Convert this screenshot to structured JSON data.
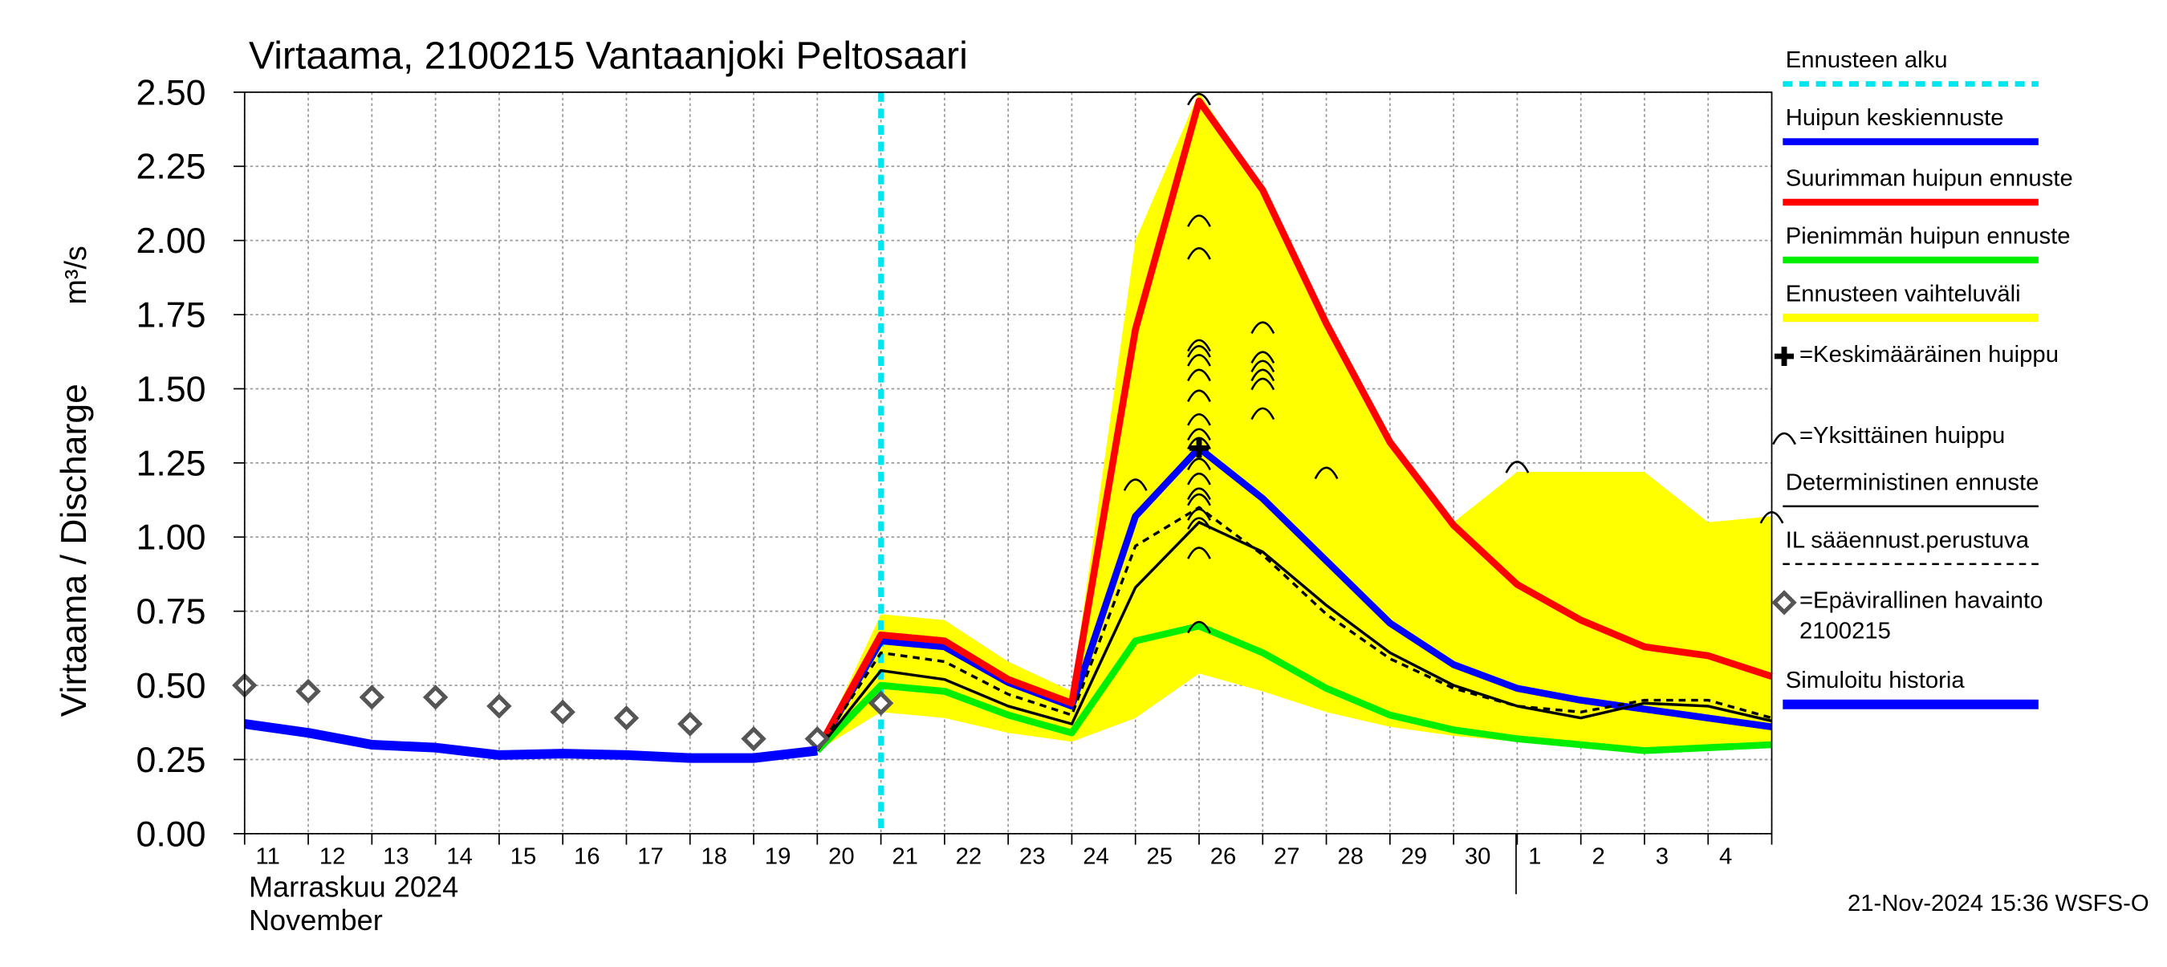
{
  "chart_data": {
    "type": "line",
    "title": "Virtaama, 2100215 Vantaanjoki Peltosaari",
    "y_label": "Virtaama / Discharge",
    "y_unit": "m³/s",
    "x_label_1": "Marraskuu 2024",
    "x_label_2": "November",
    "timestamp": "21-Nov-2024 15:36 WSFS-O",
    "categories": [
      "11",
      "12",
      "13",
      "14",
      "15",
      "16",
      "17",
      "18",
      "19",
      "20",
      "21",
      "22",
      "23",
      "24",
      "25",
      "26",
      "27",
      "28",
      "29",
      "30",
      "1",
      "2",
      "3",
      "4",
      null
    ],
    "ylim": [
      0,
      2.5
    ],
    "yticks": [
      {
        "value": 0,
        "label": "0.00"
      },
      {
        "value": 0.25,
        "label": "0.25"
      },
      {
        "value": 0.5,
        "label": "0.50"
      },
      {
        "value": 0.75,
        "label": "0.75"
      },
      {
        "value": 1,
        "label": "1.00"
      },
      {
        "value": 1.25,
        "label": "1.25"
      },
      {
        "value": 1.5,
        "label": "1.50"
      },
      {
        "value": 1.75,
        "label": "1.75"
      },
      {
        "value": 2,
        "label": "2.00"
      },
      {
        "value": 2.25,
        "label": "2.25"
      },
      {
        "value": 2.5,
        "label": "2.50"
      }
    ],
    "grid": true,
    "series": [
      {
        "name": "Ennusteen alku",
        "kind": "vline",
        "color": "#00e5ee",
        "x": 10
      },
      {
        "name": "Huipun keskiennuste",
        "kind": "line",
        "color": "#0000ff",
        "values": [
          null,
          null,
          null,
          null,
          null,
          null,
          null,
          null,
          null,
          0.28,
          0.65,
          0.63,
          0.51,
          0.43,
          1.07,
          1.3,
          1.13,
          0.92,
          0.71,
          0.57,
          0.49,
          0.45,
          0.42,
          0.39,
          0.36
        ]
      },
      {
        "name": "Suurimman huipun ennuste",
        "kind": "line",
        "color": "#ff0000",
        "values": [
          null,
          null,
          null,
          null,
          null,
          null,
          null,
          null,
          null,
          0.28,
          0.67,
          0.65,
          0.52,
          0.44,
          1.7,
          2.47,
          2.17,
          1.72,
          1.32,
          1.04,
          0.84,
          0.72,
          0.63,
          0.6,
          0.53
        ]
      },
      {
        "name": "Pienimmän huipun ennuste",
        "kind": "line",
        "color": "#00ee00",
        "values": [
          null,
          null,
          null,
          null,
          null,
          null,
          null,
          null,
          null,
          0.28,
          0.5,
          0.48,
          0.4,
          0.34,
          0.65,
          0.7,
          0.61,
          0.49,
          0.4,
          0.35,
          0.32,
          0.3,
          0.28,
          0.29,
          0.3
        ]
      },
      {
        "name": "Ennusteen vaihteluväli",
        "kind": "band",
        "color": "#ffff00",
        "high": [
          null,
          null,
          null,
          null,
          null,
          null,
          null,
          null,
          null,
          0.28,
          0.74,
          0.72,
          0.58,
          0.48,
          2.0,
          2.5,
          2.17,
          1.72,
          1.32,
          1.05,
          1.22,
          1.22,
          1.22,
          1.05,
          1.07
        ],
        "low": [
          null,
          null,
          null,
          null,
          null,
          null,
          null,
          null,
          null,
          0.28,
          0.41,
          0.39,
          0.34,
          0.31,
          0.39,
          0.54,
          0.48,
          0.41,
          0.36,
          0.33,
          0.31,
          0.29,
          0.27,
          0.28,
          0.29
        ]
      },
      {
        "name": "=Keskimääräinen huippu",
        "kind": "cross",
        "color": "#000000",
        "x": [
          15
        ],
        "values": [
          1.3
        ]
      },
      {
        "name": "=Yksittäinen huippu",
        "kind": "arc",
        "color": "#000000",
        "x": [
          14,
          15,
          15,
          15,
          15,
          15,
          15,
          15,
          15,
          15,
          15,
          15,
          15,
          15,
          15,
          15,
          15,
          15,
          15,
          15,
          16,
          16,
          16,
          16,
          16,
          16,
          17,
          20,
          24
        ],
        "values": [
          1.18,
          2.48,
          2.07,
          1.96,
          1.65,
          1.63,
          1.6,
          1.55,
          1.48,
          1.4,
          1.35,
          1.32,
          1.25,
          1.2,
          1.15,
          1.13,
          1.08,
          1.05,
          0.95,
          0.7,
          1.71,
          1.61,
          1.58,
          1.55,
          1.52,
          1.42,
          1.22,
          1.24,
          1.07
        ]
      },
      {
        "name": "Deterministinen ennuste",
        "kind": "line",
        "width": 2,
        "color": "#000000",
        "values": [
          null,
          null,
          null,
          null,
          null,
          null,
          null,
          null,
          null,
          0.28,
          0.55,
          0.52,
          0.43,
          0.37,
          0.83,
          1.05,
          0.95,
          0.77,
          0.61,
          0.5,
          0.43,
          0.39,
          0.44,
          0.43,
          0.38
        ]
      },
      {
        "name": "IL sääennust.perustuva",
        "kind": "dashed",
        "width": 2,
        "color": "#000000",
        "values": [
          null,
          null,
          null,
          null,
          null,
          null,
          null,
          null,
          null,
          0.28,
          0.61,
          0.58,
          0.47,
          0.4,
          0.97,
          1.1,
          0.94,
          0.74,
          0.59,
          0.49,
          0.43,
          0.41,
          0.45,
          0.45,
          0.39
        ]
      },
      {
        "name": "=Epävirallinen havainto 2100215",
        "kind": "diamond",
        "color": "#555555",
        "values": [
          0.5,
          0.48,
          0.46,
          0.46,
          0.43,
          0.41,
          0.39,
          0.37,
          0.32,
          0.32,
          0.44,
          null,
          null,
          null,
          null,
          null,
          null,
          null,
          null,
          null,
          null,
          null,
          null,
          null,
          null
        ]
      },
      {
        "name": "Simuloitu historia",
        "kind": "line",
        "width": 7,
        "color": "#0000ff",
        "values": [
          0.37,
          0.34,
          0.3,
          0.29,
          0.265,
          0.27,
          0.265,
          0.255,
          0.255,
          0.28,
          null,
          null,
          null,
          null,
          null,
          null,
          null,
          null,
          null,
          null,
          null,
          null,
          null,
          null,
          null
        ]
      }
    ]
  }
}
